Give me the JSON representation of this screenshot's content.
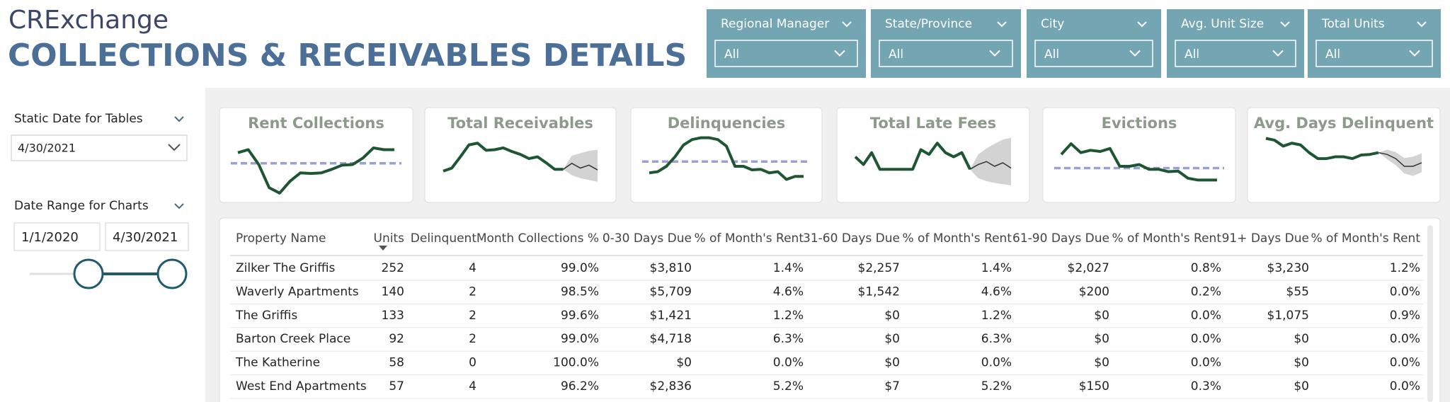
{
  "header": {
    "logo": "CRExchange",
    "title": "COLLECTIONS & RECEIVABLES DETAILS"
  },
  "filters": [
    {
      "label": "Regional Manager",
      "value": "All"
    },
    {
      "label": "State/Province",
      "value": "All"
    },
    {
      "label": "City",
      "value": "All"
    },
    {
      "label": "Avg. Unit Size",
      "value": "All"
    },
    {
      "label": "Total Units",
      "value": "All"
    }
  ],
  "side_panel": {
    "static_date": {
      "label": "Static Date for Tables",
      "value": "4/30/2021"
    },
    "date_range": {
      "label": "Date Range for Charts",
      "start": "1/1/2020",
      "end": "4/30/2021"
    }
  },
  "cards": [
    {
      "title": "Rent Collections",
      "ylim": [
        0,
        100
      ],
      "reference": 55,
      "values": [
        73,
        78,
        53,
        14,
        5,
        25,
        39,
        38,
        39,
        45,
        52,
        53,
        64,
        81,
        78,
        78
      ]
    },
    {
      "title": "Total Receivables",
      "ylim": [
        0,
        100
      ],
      "values": [
        42,
        47,
        66,
        86,
        89,
        77,
        78,
        81,
        75,
        70,
        63,
        66,
        56,
        45,
        45
      ],
      "forecast": [
        55,
        47,
        52,
        44
      ],
      "forecast_low": [
        35,
        30,
        27,
        24
      ],
      "forecast_high": [
        68,
        72,
        76,
        78
      ]
    },
    {
      "title": "Delinquencies",
      "ylim": [
        0,
        100
      ],
      "reference": 58,
      "values": [
        39,
        41,
        50,
        66,
        86,
        95,
        98,
        98,
        95,
        84,
        50,
        50,
        44,
        45,
        39,
        41,
        28,
        33,
        33
      ]
    },
    {
      "title": "Total Late Fees",
      "ylim": [
        0,
        100
      ],
      "values": [
        66,
        53,
        73,
        45,
        45,
        45,
        45,
        45,
        78,
        70,
        89,
        73,
        66,
        73,
        45
      ],
      "forecast": [
        53,
        58,
        50,
        56,
        47
      ],
      "forecast_low": [
        30,
        25,
        22,
        20,
        18
      ],
      "forecast_high": [
        70,
        80,
        88,
        95,
        98
      ]
    },
    {
      "title": "Evictions",
      "ylim": [
        0,
        100
      ],
      "reference": 47,
      "values": [
        70,
        88,
        73,
        77,
        75,
        80,
        50,
        50,
        53,
        45,
        45,
        41,
        42,
        30,
        27,
        27,
        27
      ]
    },
    {
      "title": "Avg. Days Delinquent",
      "ylim": [
        0,
        100
      ],
      "values": [
        97,
        94,
        84,
        89,
        86,
        73,
        63,
        63,
        66,
        66,
        63,
        69,
        70,
        73
      ],
      "forecast": [
        70,
        63,
        50,
        50,
        56
      ],
      "forecast_low": [
        62,
        52,
        38,
        34,
        40
      ],
      "forecast_high": [
        78,
        74,
        64,
        66,
        72
      ]
    }
  ],
  "table": {
    "columns": [
      "Property Name",
      "Units",
      "Delinquent",
      "Month Collections %",
      "0-30 Days Due",
      "% of Month's Rent",
      "31-60 Days Due",
      "% of Month's Rent",
      "61-90 Days Due",
      "% of Month's Rent",
      "91+ Days Due",
      "% of Month's Rent"
    ],
    "rows": [
      [
        "Zilker The Griffis",
        "252",
        "4",
        "99.0%",
        "$3,810",
        "1.4%",
        "$2,257",
        "1.4%",
        "$2,027",
        "0.8%",
        "$3,230",
        "1.2%"
      ],
      [
        "Waverly Apartments",
        "140",
        "2",
        "98.5%",
        "$5,709",
        "4.6%",
        "$1,542",
        "4.6%",
        "$200",
        "0.2%",
        "$55",
        "0.0%"
      ],
      [
        "The Griffis",
        "133",
        "2",
        "99.6%",
        "$1,421",
        "1.2%",
        "$0",
        "1.2%",
        "$0",
        "0.0%",
        "$1,075",
        "0.9%"
      ],
      [
        "Barton Creek Place",
        "92",
        "2",
        "99.0%",
        "$4,718",
        "6.3%",
        "$0",
        "6.3%",
        "$0",
        "0.0%",
        "$0",
        "0.0%"
      ],
      [
        "The Katherine",
        "58",
        "0",
        "100.0%",
        "$0",
        "0.0%",
        "$0",
        "0.0%",
        "$0",
        "0.0%",
        "$0",
        "0.0%"
      ],
      [
        "West End Apartments",
        "57",
        "4",
        "96.2%",
        "$2,836",
        "5.2%",
        "$7",
        "5.2%",
        "$150",
        "0.3%",
        "$0",
        "0.0%"
      ]
    ]
  }
}
